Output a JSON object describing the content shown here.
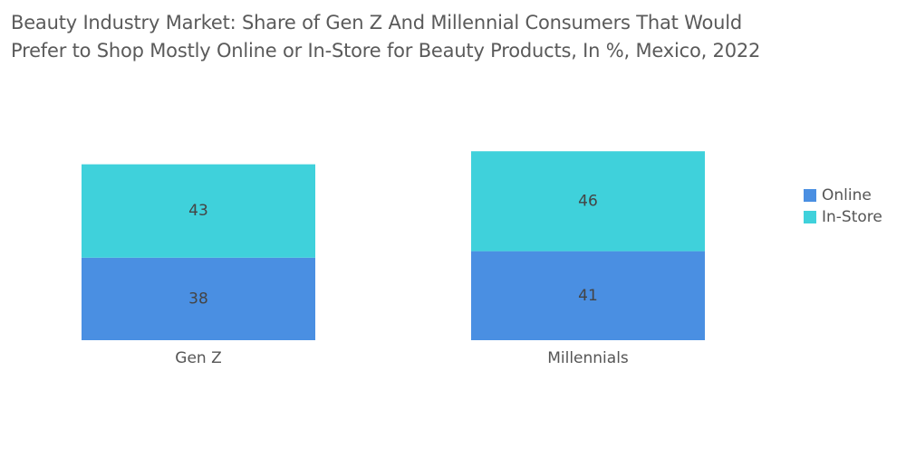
{
  "chart_data": {
    "type": "bar",
    "stacked": true,
    "title_lines": [
      "Beauty Industry Market: Share of Gen Z And Millennial Consumers That Would",
      "Prefer to Shop Mostly Online or In-Store for Beauty Products, In %, Mexico, 2022"
    ],
    "categories": [
      "Gen Z",
      "Millennials"
    ],
    "series": [
      {
        "name": "Online",
        "values": [
          38,
          41
        ],
        "color": "#4a8fe2"
      },
      {
        "name": "In-Store",
        "values": [
          43,
          46
        ],
        "color": "#3fd1db"
      }
    ],
    "data_labels": true,
    "grid": false,
    "axes_visible": false,
    "legend_position": "right"
  }
}
